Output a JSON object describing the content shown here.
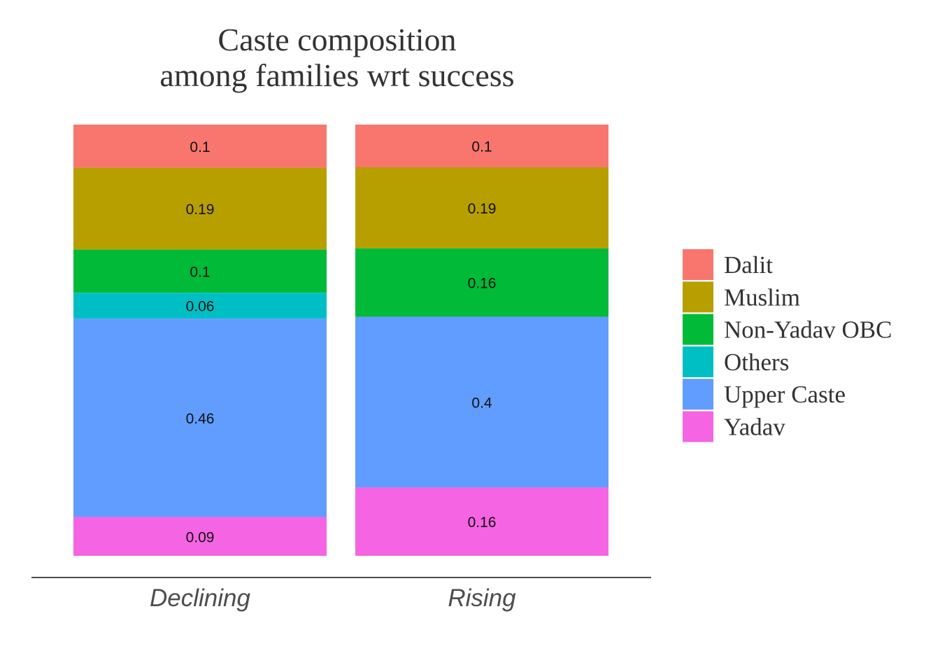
{
  "chart_data": {
    "type": "bar",
    "stacked": true,
    "title_lines": [
      "Caste composition",
      "among families wrt success"
    ],
    "xlabel": "",
    "ylabel": "",
    "ylim": [
      0,
      1
    ],
    "categories": [
      "Declining",
      "Rising"
    ],
    "series": [
      {
        "name": "Dalit",
        "color": "#F8766D",
        "values": [
          0.1,
          0.1
        ],
        "labels": [
          "0.1",
          "0.1"
        ]
      },
      {
        "name": "Muslim",
        "color": "#B79F00",
        "values": [
          0.19,
          0.19
        ],
        "labels": [
          "0.19",
          "0.19"
        ]
      },
      {
        "name": "Non-Yadav OBC",
        "color": "#00BA38",
        "values": [
          0.1,
          0.16
        ],
        "labels": [
          "0.1",
          "0.16"
        ]
      },
      {
        "name": "Others",
        "color": "#00BFC4",
        "values": [
          0.06,
          0.0
        ],
        "labels": [
          "0.06",
          ""
        ]
      },
      {
        "name": "Upper Caste",
        "color": "#619CFF",
        "values": [
          0.46,
          0.4
        ],
        "labels": [
          "0.46",
          "0.4"
        ]
      },
      {
        "name": "Yadav",
        "color": "#F564E3",
        "values": [
          0.09,
          0.16
        ],
        "labels": [
          "0.09",
          "0.16"
        ]
      }
    ],
    "legend_position": "right",
    "grid": false
  }
}
